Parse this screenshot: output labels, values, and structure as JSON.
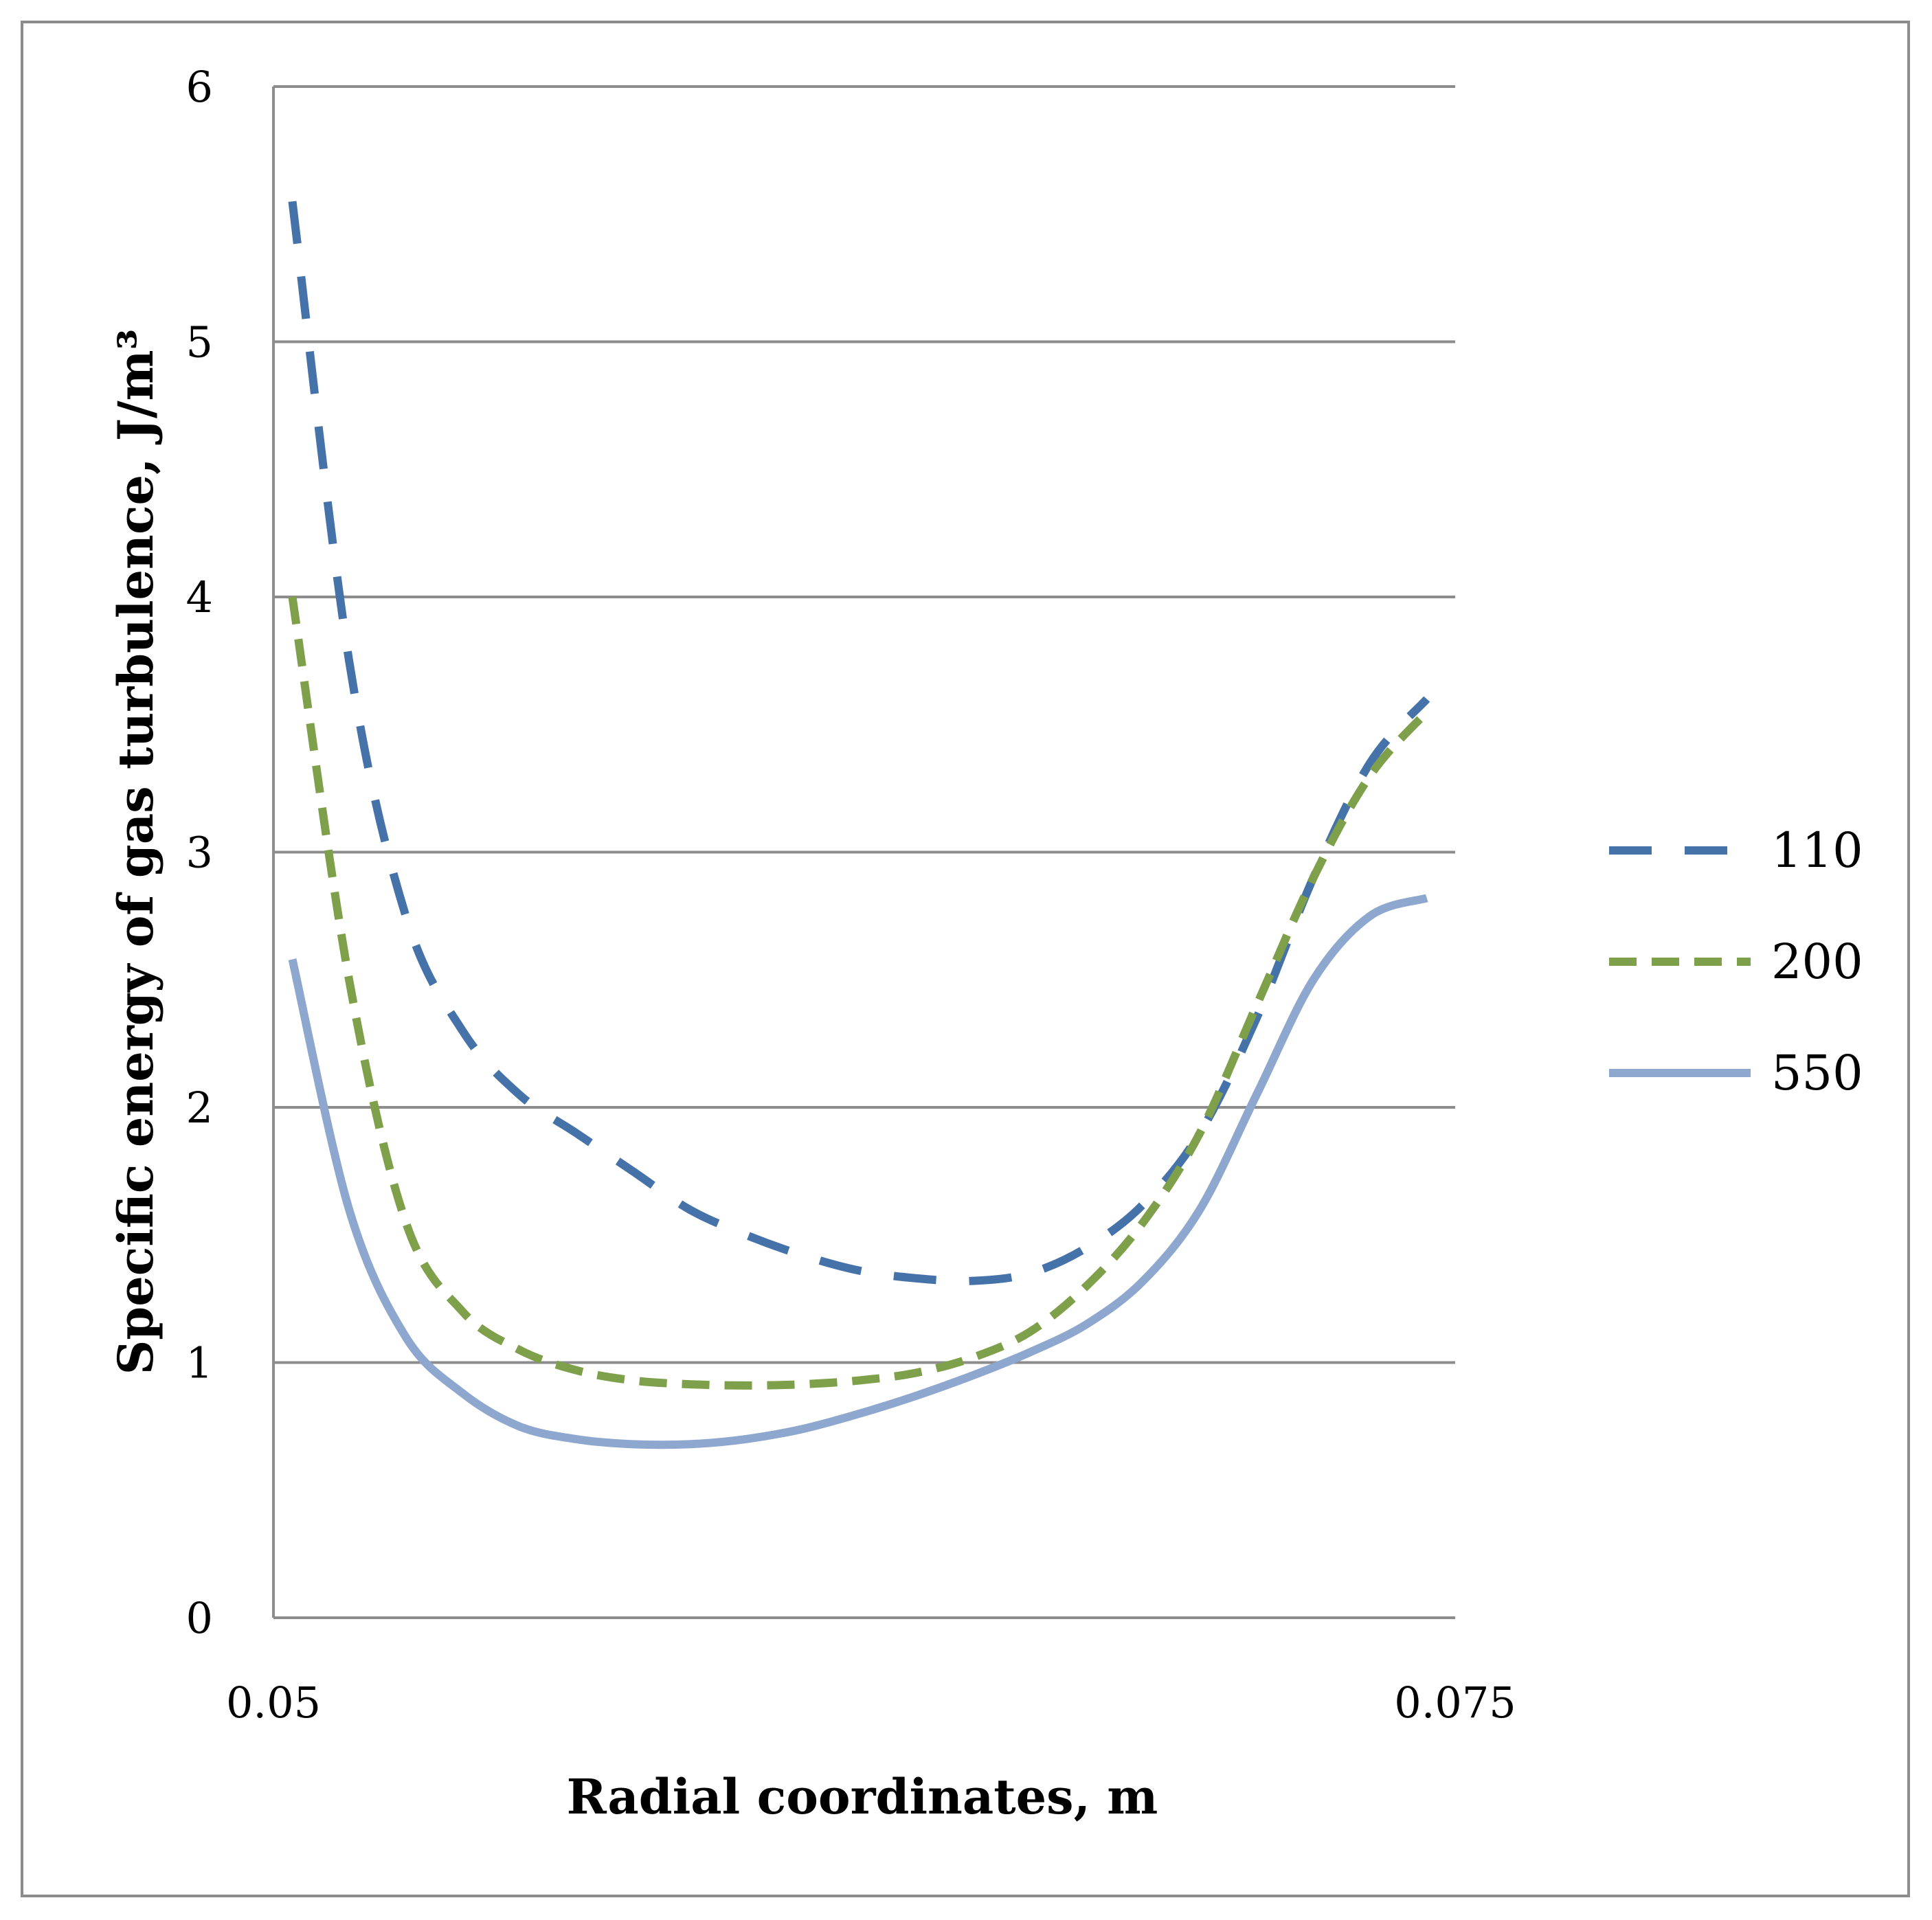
{
  "chart_data": {
    "type": "line",
    "title": "",
    "xlabel": "Radial coordinates, m",
    "ylabel": "Specific energy of gas turbulence, J/m³",
    "xlim": [
      0.05,
      0.075
    ],
    "ylim": [
      0,
      6
    ],
    "x_ticks": [
      "0.05",
      "0.075"
    ],
    "y_ticks": [
      "0",
      "1",
      "2",
      "3",
      "4",
      "5",
      "6"
    ],
    "grid": true,
    "legend_position": "right",
    "series": [
      {
        "name": "110",
        "style": "dashed-long",
        "color": "#4672aa",
        "x": [
          0.0504,
          0.0516,
          0.0528,
          0.054,
          0.0552,
          0.0564,
          0.0576,
          0.0588,
          0.06,
          0.0612,
          0.0624,
          0.0636,
          0.0648,
          0.066,
          0.0672,
          0.0684,
          0.0696,
          0.0708,
          0.072,
          0.0732,
          0.0744
        ],
        "y": [
          5.55,
          3.75,
          2.75,
          2.3,
          2.05,
          1.9,
          1.75,
          1.6,
          1.5,
          1.42,
          1.36,
          1.33,
          1.32,
          1.35,
          1.45,
          1.62,
          1.9,
          2.35,
          2.9,
          3.35,
          3.6
        ]
      },
      {
        "name": "200",
        "style": "dashed",
        "color": "#7fa04a",
        "x": [
          0.0504,
          0.0516,
          0.0528,
          0.054,
          0.0552,
          0.0564,
          0.0576,
          0.0588,
          0.06,
          0.0612,
          0.0624,
          0.0636,
          0.0648,
          0.066,
          0.0672,
          0.0684,
          0.0696,
          0.0708,
          0.072,
          0.0732,
          0.0744
        ],
        "y": [
          4.0,
          2.5,
          1.55,
          1.2,
          1.05,
          0.97,
          0.93,
          0.915,
          0.91,
          0.915,
          0.93,
          0.96,
          1.02,
          1.12,
          1.3,
          1.55,
          1.9,
          2.4,
          2.9,
          3.3,
          3.55
        ]
      },
      {
        "name": "550",
        "style": "solid",
        "color": "#8ea7cf",
        "x": [
          0.0504,
          0.0516,
          0.0528,
          0.054,
          0.0552,
          0.0564,
          0.0576,
          0.0588,
          0.06,
          0.0612,
          0.0624,
          0.0636,
          0.0648,
          0.066,
          0.0672,
          0.0684,
          0.0696,
          0.0708,
          0.072,
          0.0732,
          0.0744
        ],
        "y": [
          2.58,
          1.6,
          1.1,
          0.88,
          0.75,
          0.7,
          0.68,
          0.68,
          0.7,
          0.74,
          0.8,
          0.87,
          0.95,
          1.04,
          1.15,
          1.32,
          1.6,
          2.05,
          2.5,
          2.75,
          2.82
        ]
      }
    ]
  }
}
